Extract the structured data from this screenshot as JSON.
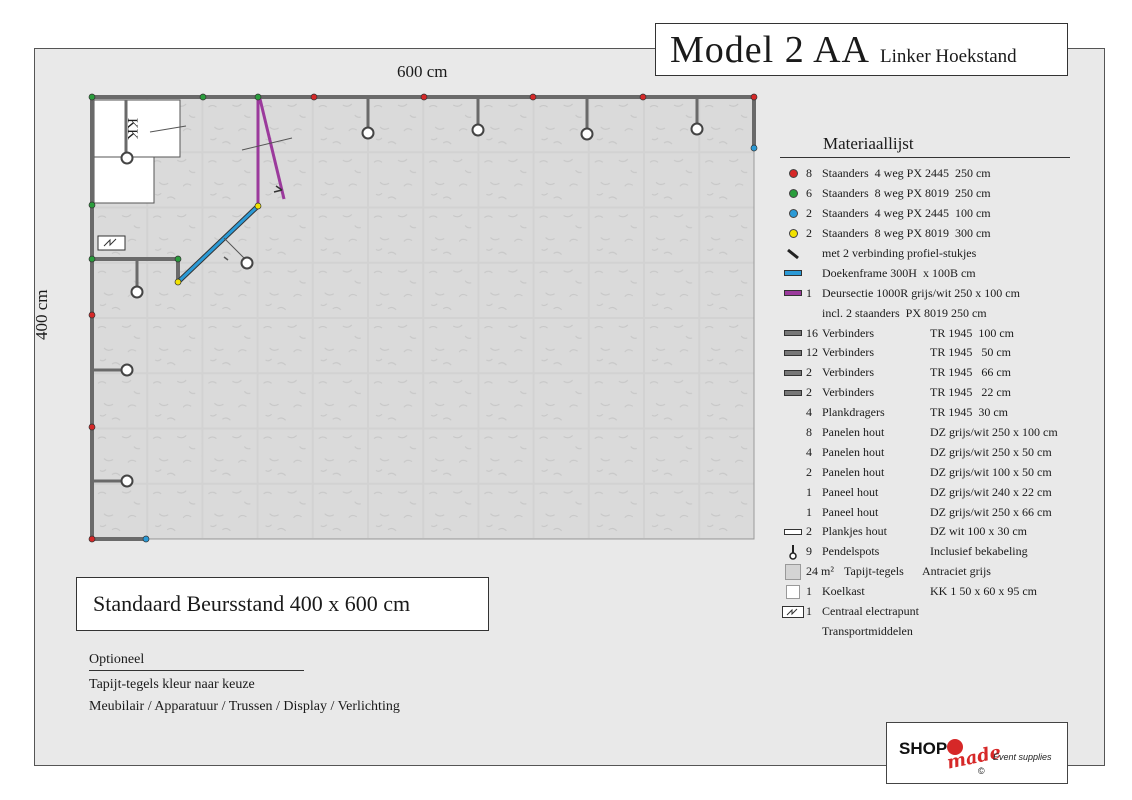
{
  "title": {
    "model": "Model 2 AA",
    "subtitle": "Linker Hoekstand"
  },
  "dimensions": {
    "width": "600 cm",
    "height": "400 cm"
  },
  "plan": {
    "fridge_label": "KK"
  },
  "legend": {
    "title": "Materiaallijst",
    "rows": [
      {
        "symbol": "dot",
        "color": "#d62828",
        "qty": "8",
        "desc": "Staanders  4 weg PX 2445  250 cm",
        "spec": ""
      },
      {
        "symbol": "dot",
        "color": "#2a9d3c",
        "qty": "6",
        "desc": "Staanders  8 weg PX 8019  250 cm",
        "spec": ""
      },
      {
        "symbol": "dot",
        "color": "#2b9ad6",
        "qty": "2",
        "desc": "Staanders  4 weg PX 2445  100 cm",
        "spec": ""
      },
      {
        "symbol": "dot",
        "color": "#f2e200",
        "qty": "2",
        "desc": "Staanders  8 weg PX 8019  300 cm",
        "spec": ""
      },
      {
        "symbol": "diag",
        "color": "#222222",
        "qty": "",
        "desc": "met 2 verbinding profiel-stukjes",
        "spec": ""
      },
      {
        "symbol": "bar",
        "color": "#2b9ad6",
        "qty": "",
        "desc": "Doekenframe 300H  x 100B cm",
        "spec": ""
      },
      {
        "symbol": "bar",
        "color": "#9b3a9c",
        "qty": "1",
        "desc": "Deursectie 1000R grijs/wit 250 x 100 cm",
        "spec": ""
      },
      {
        "symbol": "none",
        "color": "",
        "qty": "",
        "desc": "incl. 2 staanders  PX 8019 250 cm",
        "spec": ""
      },
      {
        "symbol": "bar",
        "color": "#777777",
        "qty": "16",
        "desc": "Verbinders",
        "spec": "TR 1945  100 cm"
      },
      {
        "symbol": "bar",
        "color": "#777777",
        "qty": "12",
        "desc": "Verbinders",
        "spec": "TR 1945   50 cm"
      },
      {
        "symbol": "bar",
        "color": "#777777",
        "qty": "2",
        "desc": "Verbinders",
        "spec": "TR 1945   66 cm"
      },
      {
        "symbol": "bar",
        "color": "#777777",
        "qty": "2",
        "desc": "Verbinders",
        "spec": "TR 1945   22 cm"
      },
      {
        "symbol": "none",
        "color": "",
        "qty": "4",
        "desc": "Plankdragers",
        "spec": "TR 1945  30 cm"
      },
      {
        "symbol": "none",
        "color": "",
        "qty": "8",
        "desc": "Panelen hout",
        "spec": "DZ grijs/wit 250 x 100 cm"
      },
      {
        "symbol": "none",
        "color": "",
        "qty": "4",
        "desc": "Panelen hout",
        "spec": "DZ grijs/wit 250 x 50 cm"
      },
      {
        "symbol": "none",
        "color": "",
        "qty": "2",
        "desc": "Panelen hout",
        "spec": "DZ grijs/wit 100 x 50 cm"
      },
      {
        "symbol": "none",
        "color": "",
        "qty": "1",
        "desc": "Paneel hout",
        "spec": "DZ grijs/wit 240 x 22 cm"
      },
      {
        "symbol": "none",
        "color": "",
        "qty": "1",
        "desc": "Paneel hout",
        "spec": "DZ grijs/wit 250 x 66 cm"
      },
      {
        "symbol": "plank",
        "color": "#ffffff",
        "qty": "2",
        "desc": "Plankjes hout",
        "spec": "DZ wit 100 x 30 cm"
      },
      {
        "symbol": "spot",
        "color": "#222222",
        "qty": "9",
        "desc": "Pendelspots",
        "spec": "Inclusief bekabeling"
      },
      {
        "symbol": "tile",
        "color": "#d4d4d4",
        "qty": "24 m²",
        "desc": "Tapijt-tegels",
        "spec": "Antraciet grijs"
      },
      {
        "symbol": "fridge",
        "color": "#ffffff",
        "qty": "1",
        "desc": "Koelkast",
        "spec": "KK 1 50 x 60 x 95 cm"
      },
      {
        "symbol": "power",
        "color": "#ffffff",
        "qty": "1",
        "desc": "Centraal electrapunt",
        "spec": ""
      },
      {
        "symbol": "none",
        "color": "",
        "qty": "",
        "desc": "Transportmiddelen",
        "spec": ""
      }
    ]
  },
  "stand_label": "Standaard Beursstand 400 x 600 cm",
  "optional": {
    "title": "Optioneel",
    "lines": [
      "Tapijt-tegels kleur naar keuze",
      "Meubilair / Apparatuur / Trussen / Display / Verlichting"
    ]
  },
  "logo": {
    "text": "SHOPmade",
    "tagline": "Event supplies"
  }
}
